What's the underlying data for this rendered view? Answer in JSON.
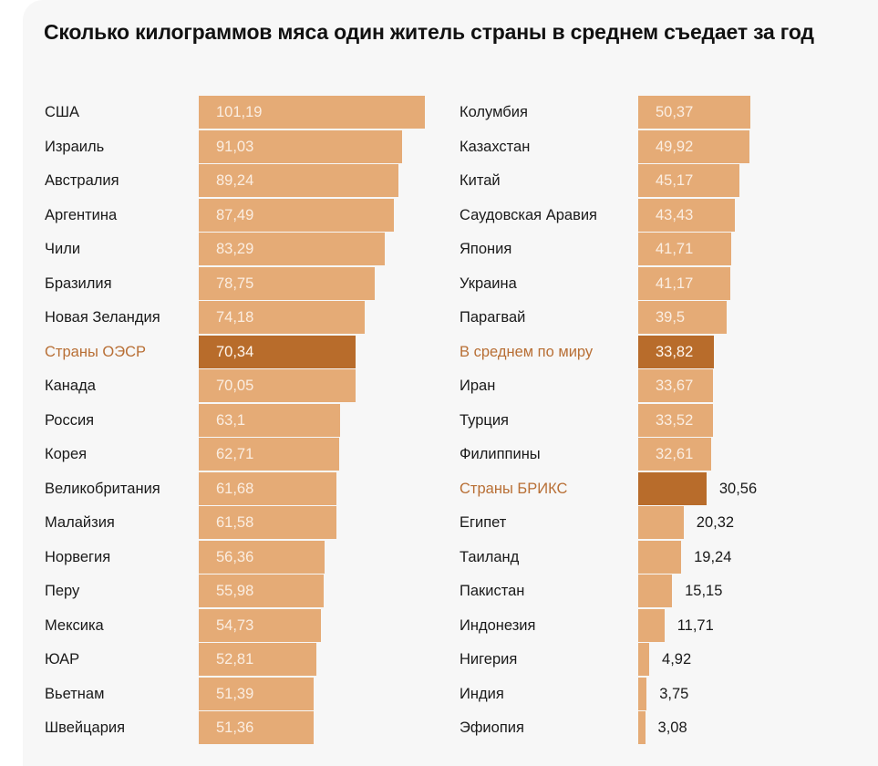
{
  "chart_data": {
    "type": "bar",
    "orientation": "horizontal",
    "title": "Сколько килограммов мяса один житель страны в среднем съедает за год",
    "xlabel": "",
    "ylabel": "",
    "unit": "кг",
    "colors": {
      "bar": "#e5ab76",
      "highlight_bar": "#b86c2b",
      "highlight_label": "#b86f35"
    },
    "columns": [
      {
        "items": [
          {
            "label": "США",
            "value": 101.19,
            "display": "101,19",
            "highlight": false
          },
          {
            "label": "Израиль",
            "value": 91.03,
            "display": "91,03",
            "highlight": false
          },
          {
            "label": "Австралия",
            "value": 89.24,
            "display": "89,24",
            "highlight": false
          },
          {
            "label": "Аргентина",
            "value": 87.49,
            "display": "87,49",
            "highlight": false
          },
          {
            "label": "Чили",
            "value": 83.29,
            "display": "83,29",
            "highlight": false
          },
          {
            "label": "Бразилия",
            "value": 78.75,
            "display": "78,75",
            "highlight": false
          },
          {
            "label": "Новая Зеландия",
            "value": 74.18,
            "display": "74,18",
            "highlight": false
          },
          {
            "label": "Страны ОЭСР",
            "value": 70.34,
            "display": "70,34",
            "highlight": true
          },
          {
            "label": "Канада",
            "value": 70.05,
            "display": "70,05",
            "highlight": false
          },
          {
            "label": "Россия",
            "value": 63.1,
            "display": "63,1",
            "highlight": false
          },
          {
            "label": "Корея",
            "value": 62.71,
            "display": "62,71",
            "highlight": false
          },
          {
            "label": "Великобритания",
            "value": 61.68,
            "display": "61,68",
            "highlight": false
          },
          {
            "label": "Малайзия",
            "value": 61.58,
            "display": "61,58",
            "highlight": false
          },
          {
            "label": "Норвегия",
            "value": 56.36,
            "display": "56,36",
            "highlight": false
          },
          {
            "label": "Перу",
            "value": 55.98,
            "display": "55,98",
            "highlight": false
          },
          {
            "label": "Мексика",
            "value": 54.73,
            "display": "54,73",
            "highlight": false
          },
          {
            "label": "ЮАР",
            "value": 52.81,
            "display": "52,81",
            "highlight": false
          },
          {
            "label": "Вьетнам",
            "value": 51.39,
            "display": "51,39",
            "highlight": false
          },
          {
            "label": "Швейцария",
            "value": 51.36,
            "display": "51,36",
            "highlight": false
          }
        ]
      },
      {
        "items": [
          {
            "label": "Колумбия",
            "value": 50.37,
            "display": "50,37",
            "highlight": false
          },
          {
            "label": "Казахстан",
            "value": 49.92,
            "display": "49,92",
            "highlight": false
          },
          {
            "label": "Китай",
            "value": 45.17,
            "display": "45,17",
            "highlight": false
          },
          {
            "label": "Саудовская Аравия",
            "value": 43.43,
            "display": "43,43",
            "highlight": false
          },
          {
            "label": "Япония",
            "value": 41.71,
            "display": "41,71",
            "highlight": false
          },
          {
            "label": "Украина",
            "value": 41.17,
            "display": "41,17",
            "highlight": false
          },
          {
            "label": "Парагвай",
            "value": 39.5,
            "display": "39,5",
            "highlight": false
          },
          {
            "label": "В среднем по миру",
            "value": 33.82,
            "display": "33,82",
            "highlight": true
          },
          {
            "label": "Иран",
            "value": 33.67,
            "display": "33,67",
            "highlight": false
          },
          {
            "label": "Турция",
            "value": 33.52,
            "display": "33,52",
            "highlight": false
          },
          {
            "label": "Филиппины",
            "value": 32.61,
            "display": "32,61",
            "highlight": false
          },
          {
            "label": "Страны БРИКС",
            "value": 30.56,
            "display": "30,56",
            "highlight": true
          },
          {
            "label": "Египет",
            "value": 20.32,
            "display": "20,32",
            "highlight": false
          },
          {
            "label": "Таиланд",
            "value": 19.24,
            "display": "19,24",
            "highlight": false
          },
          {
            "label": "Пакистан",
            "value": 15.15,
            "display": "15,15",
            "highlight": false
          },
          {
            "label": "Индонезия",
            "value": 11.71,
            "display": "11,71",
            "highlight": false
          },
          {
            "label": "Нигерия",
            "value": 4.92,
            "display": "4,92",
            "highlight": false
          },
          {
            "label": "Индия",
            "value": 3.75,
            "display": "3,75",
            "highlight": false
          },
          {
            "label": "Эфиопия",
            "value": 3.08,
            "display": "3,08",
            "highlight": false
          }
        ]
      }
    ],
    "label_inside_min_value": 32.0,
    "grid": false,
    "legend": "none"
  }
}
